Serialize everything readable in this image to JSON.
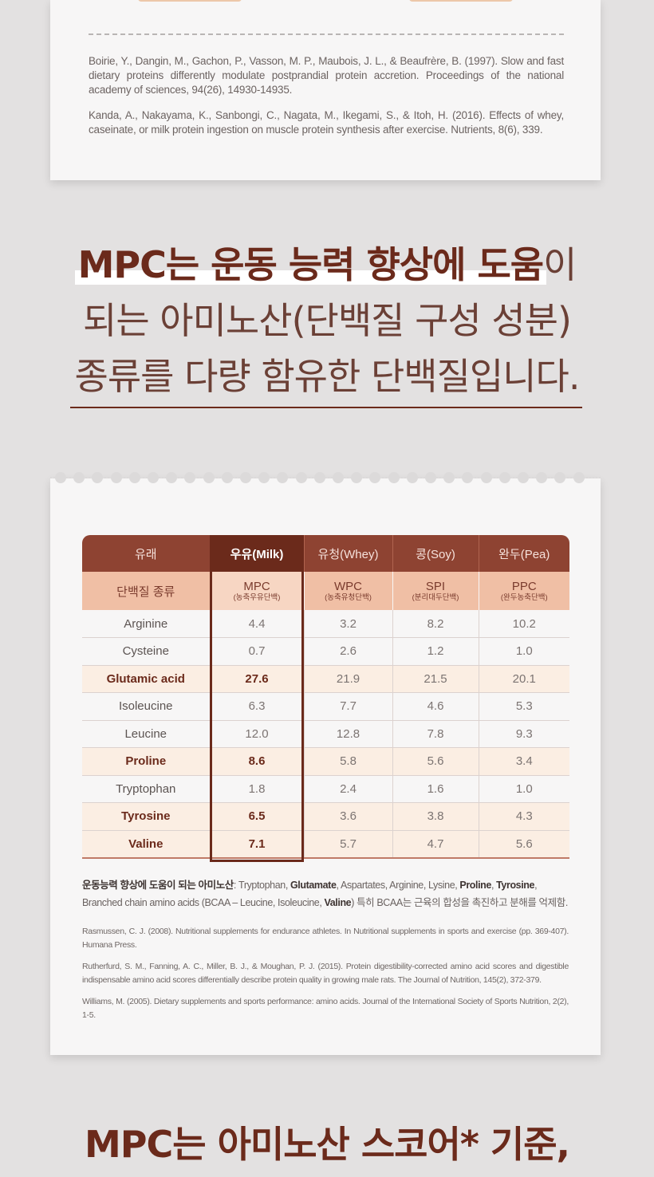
{
  "top_card": {
    "references": [
      "Boirie, Y., Dangin, M., Gachon, P., Vasson, M. P., Maubois, J. L., & Beaufrère, B. (1997). Slow and fast dietary proteins differently modulate postprandial protein accretion. Proceedings of the national academy of sciences, 94(26), 14930-14935.",
      "Kanda, A., Nakayama, K., Sanbongi, C., Nagata, M., Ikegami, S., & Itoh, H. (2016). Effects of whey, caseinate, or milk protein ingestion on muscle protein synthesis after exercise. Nutrients, 8(6), 339."
    ]
  },
  "headline": {
    "line1_bold": "MPC는 운동 능력 향상에 도움",
    "line1_rest": "이",
    "line2": "되는 아미노산(단백질 구성 성분)",
    "line3": "종류를 다량 함유한 단백질입니다."
  },
  "table": {
    "header_origin": [
      "유래",
      "우유(Milk)",
      "유청(Whey)",
      "콩(Soy)",
      "완두(Pea)"
    ],
    "header_type_label": "단백질 종류",
    "header_types": [
      {
        "code": "MPC",
        "sub": "(농축우유단백)"
      },
      {
        "code": "WPC",
        "sub": "(농축유청단백)"
      },
      {
        "code": "SPI",
        "sub": "(분리대두단백)"
      },
      {
        "code": "PPC",
        "sub": "(완두농축단백)"
      }
    ],
    "rows": [
      {
        "name": "Arginine",
        "values": [
          "4.4",
          "3.2",
          "8.2",
          "10.2"
        ],
        "highlight": false
      },
      {
        "name": "Cysteine",
        "values": [
          "0.7",
          "2.6",
          "1.2",
          "1.0"
        ],
        "highlight": false
      },
      {
        "name": "Glutamic acid",
        "values": [
          "27.6",
          "21.9",
          "21.5",
          "20.1"
        ],
        "highlight": true
      },
      {
        "name": "Isoleucine",
        "values": [
          "6.3",
          "7.7",
          "4.6",
          "5.3"
        ],
        "highlight": false
      },
      {
        "name": "Leucine",
        "values": [
          "12.0",
          "12.8",
          "7.8",
          "9.3"
        ],
        "highlight": false
      },
      {
        "name": "Proline",
        "values": [
          "8.6",
          "5.8",
          "5.6",
          "3.4"
        ],
        "highlight": true
      },
      {
        "name": "Tryptophan",
        "values": [
          "1.8",
          "2.4",
          "1.6",
          "1.0"
        ],
        "highlight": false
      },
      {
        "name": "Tyrosine",
        "values": [
          "6.5",
          "3.6",
          "3.8",
          "4.3"
        ],
        "highlight": true
      },
      {
        "name": "Valine",
        "values": [
          "7.1",
          "5.7",
          "4.7",
          "5.6"
        ],
        "highlight": true
      }
    ]
  },
  "note": {
    "label": "운동능력 향상에 도움이 되는 아미노산",
    "p1": ": Tryptophan, ",
    "b1": "Glutamate",
    "p2": ", Aspartates, Arginine, Lysine, ",
    "b2": "Proline",
    "p3": ", ",
    "b3": "Tyrosine",
    "p4": ", Branched chain amino acids (BCAA – Leucine, Isoleucine, ",
    "b4": "Valine",
    "p5": ") 특히 BCAA는 근육의 합성을 촉진하고 분해를 억제함."
  },
  "table_references": [
    "Rasmussen, C. J. (2008). Nutritional supplements for endurance athletes. In Nutritional supplements in sports and exercise (pp. 369-407). Humana Press.",
    "Rutherfurd, S. M., Fanning, A. C., Miller, B. J., & Moughan, P. J. (2015). Protein digestibility-corrected amino acid scores and digestible indispensable amino acid scores differentially describe protein quality in growing male rats. The Journal of Nutrition, 145(2), 372-379.",
    "Williams, M. (2005). Dietary supplements and sports performance: amino acids. Journal of the International Society of Sports Nutrition, 2(2), 1-5."
  ],
  "headline2": "MPC는 아미노산 스코어* 기준,"
}
